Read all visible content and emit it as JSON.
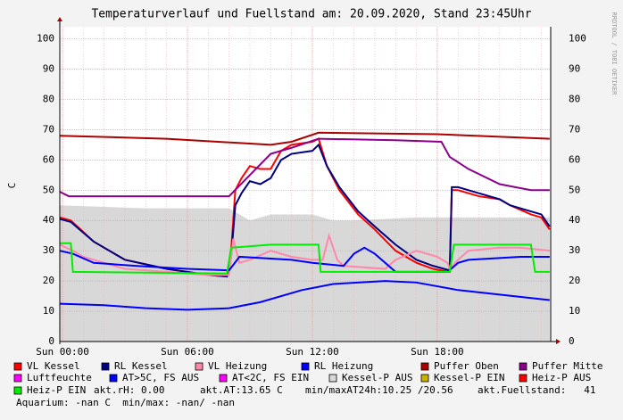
{
  "chart_data": {
    "type": "line",
    "title": "Temperaturverlauf und Fuellstand am: 20.09.2020, Stand 23:45Uhr",
    "y_label": "C",
    "watermark": "RRDTOOL / TOBI OETIKER",
    "xlim": [
      -0.13,
      23.45
    ],
    "xticks": [
      {
        "value": 0,
        "label": "Sun 00:00"
      },
      {
        "value": 6,
        "label": "Sun 06:00"
      },
      {
        "value": 12,
        "label": "Sun 12:00"
      },
      {
        "value": 18,
        "label": "Sun 18:00"
      }
    ],
    "ylim": [
      0,
      104
    ],
    "yticks": [
      0,
      10,
      20,
      30,
      40,
      50,
      60,
      70,
      80,
      90,
      100
    ],
    "grid": true,
    "series": [
      {
        "name": "VL Kessel",
        "color": "#ff0000",
        "x": [
          -0.13,
          0.4,
          1.5,
          3,
          5,
          7,
          7.9,
          8.1,
          8.3,
          8.6,
          9,
          9.5,
          10,
          10.5,
          11,
          12,
          12.3,
          12.7,
          13.3,
          14.2,
          15,
          16,
          17,
          17.8,
          18.6,
          18.7,
          19,
          20,
          21,
          21.5,
          22.5,
          23,
          23.4
        ],
        "values": [
          41,
          40,
          33,
          27,
          24,
          22,
          21.5,
          30,
          50,
          54,
          58,
          57,
          57,
          63,
          65,
          66,
          67,
          58,
          50,
          42,
          37,
          30,
          26,
          24,
          23,
          50,
          50,
          48,
          47,
          45,
          42,
          41,
          37
        ]
      },
      {
        "name": "RL Kessel",
        "color": "#000080",
        "x": [
          -0.13,
          0.4,
          1.5,
          3,
          5,
          7,
          7.9,
          8.1,
          8.3,
          8.6,
          9,
          9.5,
          10,
          10.5,
          11,
          12,
          12.3,
          12.7,
          13.3,
          14.2,
          15,
          16,
          17,
          17.8,
          18.6,
          18.7,
          19,
          20,
          21,
          21.5,
          22.5,
          23,
          23.4
        ],
        "values": [
          40.5,
          39.5,
          33,
          27,
          24,
          22,
          21.5,
          28,
          45,
          49,
          53,
          52,
          54,
          60,
          62,
          63,
          65,
          58,
          51,
          43,
          38,
          32,
          27,
          25,
          23.5,
          51,
          51,
          49,
          47,
          45,
          43,
          42,
          38
        ]
      },
      {
        "name": "VL Heizung",
        "color": "#ff88aa",
        "x": [
          -0.13,
          0.5,
          1,
          2,
          3,
          5,
          7,
          8,
          8.2,
          8.5,
          9,
          10,
          11,
          12,
          12.5,
          12.8,
          13.2,
          13.5,
          15.5,
          16,
          17,
          18,
          18.5,
          18.6,
          19,
          19.5,
          21,
          22,
          23.4
        ],
        "values": [
          32,
          30,
          28,
          26,
          24,
          23,
          22,
          22,
          34,
          26,
          27,
          30,
          28,
          27,
          27,
          35,
          27,
          25,
          24,
          27,
          30,
          28,
          26,
          24,
          27,
          30,
          31,
          31,
          30
        ]
      },
      {
        "name": "RL Heizung",
        "color": "#0000ff",
        "x": [
          -0.13,
          0.5,
          1.5,
          3.5,
          6,
          8,
          8.5,
          11,
          12,
          13.5,
          14,
          14.5,
          15,
          16,
          18.5,
          19,
          19.5,
          22,
          23.4
        ],
        "values": [
          30,
          29,
          26,
          25,
          24,
          23.5,
          28,
          27,
          26,
          25,
          29,
          31,
          29,
          23,
          23,
          26,
          27,
          28,
          28
        ]
      },
      {
        "name": "Puffer Oben",
        "color": "#aa0000",
        "x": [
          -0.13,
          5,
          10,
          11,
          12.3,
          18,
          23.4
        ],
        "values": [
          68,
          67,
          65,
          66,
          69,
          68.5,
          67
        ]
      },
      {
        "name": "Puffer Mitte",
        "color": "#8a008a",
        "x": [
          -0.13,
          0.3,
          5,
          8,
          9,
          10,
          11,
          12.3,
          16,
          18.2,
          18.6,
          19.5,
          21,
          22.5,
          23.4
        ],
        "values": [
          49.5,
          48,
          48,
          48,
          55,
          62,
          64,
          67,
          66.5,
          66,
          61,
          57,
          52,
          50,
          50
        ]
      },
      {
        "name": "Luftfeuchte",
        "color": "#ff00ff",
        "x": [],
        "values": []
      },
      {
        "name": "AT>5C, FS AUS",
        "color": "#0000ff",
        "x": [
          -0.13,
          2,
          4,
          6,
          8,
          9.5,
          11.5,
          13,
          15.5,
          17,
          19,
          21,
          23,
          23.4
        ],
        "values": [
          12.5,
          12,
          11,
          10.5,
          11,
          13,
          17,
          19,
          20,
          19.5,
          17,
          15.5,
          14,
          13.7
        ]
      },
      {
        "name": "AT<2C, FS EIN",
        "color": "#ff00ff",
        "x": [],
        "values": []
      },
      {
        "name": "Kessel-P AUS",
        "color": "#d8d8d8",
        "kind": "area",
        "x": [
          -0.13,
          4,
          8,
          9,
          10,
          12,
          13,
          14,
          17,
          20,
          23.4
        ],
        "values": [
          45,
          44,
          44,
          40,
          42,
          42,
          40,
          40,
          41,
          41,
          41
        ]
      },
      {
        "name": "Kessel-P EIN",
        "color": "#c8b400",
        "x": [],
        "values": []
      },
      {
        "name": "Heiz-P AUS",
        "color": "#ff0000",
        "x": [],
        "values": []
      },
      {
        "name": "Heiz-P EIN",
        "color": "#00ee00",
        "x": [
          -0.13,
          0.4,
          0.5,
          7.7,
          7.9,
          8.1,
          10,
          12.3,
          12.4,
          18.6,
          18.8,
          22.5,
          22.7,
          23.4
        ],
        "values": [
          32.5,
          32.5,
          23,
          22.5,
          22.5,
          31,
          32,
          32,
          23,
          23,
          32,
          32,
          23,
          23
        ]
      }
    ],
    "status": [
      "akt.rH: 0.00",
      "akt.AT:13.65 C",
      "min/maxAT24h:10.25 /20.56",
      "akt.Fuellstand:   41",
      "Aquarium: -nan C  min/max: -nan/ -nan"
    ]
  }
}
